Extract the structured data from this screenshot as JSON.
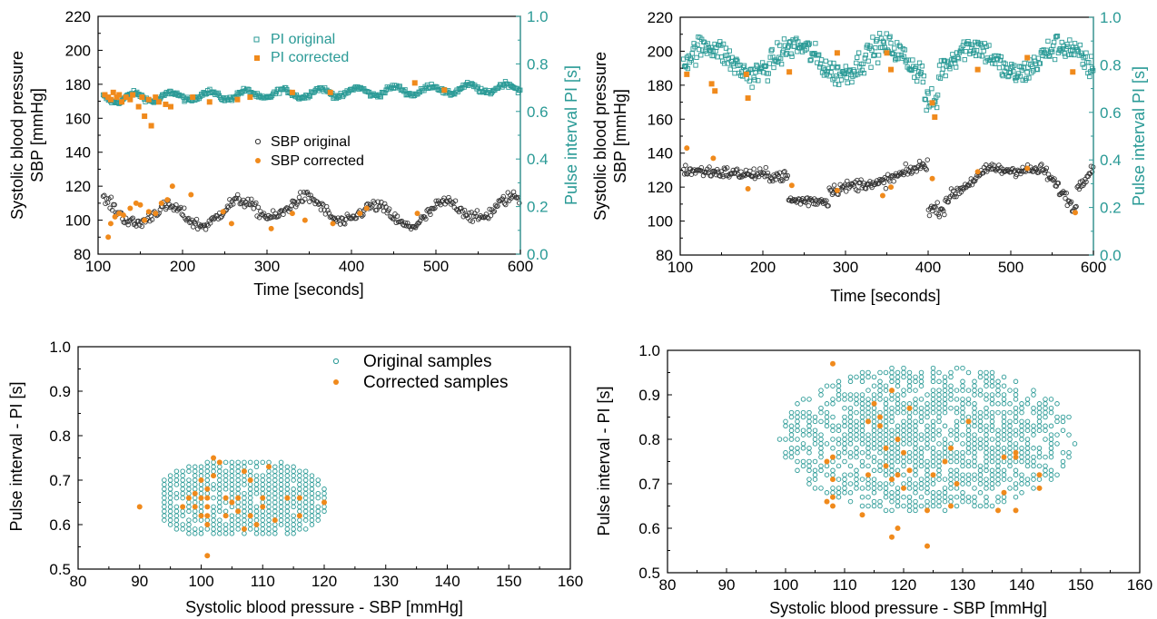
{
  "colors": {
    "pi_original": "#2a9a96",
    "corrected": "#f08a1c",
    "sbp_original": "#333333",
    "right_axis": "#2a9a96"
  },
  "chart_data": [
    {
      "id": "top-left",
      "type": "scatter",
      "title": "",
      "xlabel": "Time [seconds]",
      "ylabel": "Systolic blood pressure\nSBP [mmHg]",
      "ylabel_lines": [
        "Systolic blood pressure",
        "SBP [mmHg]"
      ],
      "y2label": "Pulse interval PI [s]",
      "xlim": [
        100,
        600
      ],
      "ylim": [
        80,
        220
      ],
      "y2lim": [
        0.0,
        1.0
      ],
      "xticks": [
        "100",
        "200",
        "300",
        "400",
        "500",
        "600"
      ],
      "yticks": [
        "80",
        "100",
        "120",
        "140",
        "160",
        "180",
        "200",
        "220"
      ],
      "y2ticks": [
        "0.0",
        "0.2",
        "0.4",
        "0.6",
        "0.8",
        "1.0"
      ],
      "legend": [
        "PI original",
        "PI corrected",
        "SBP original",
        "SBP corrected"
      ],
      "series": [
        {
          "name": "PI original",
          "axis": "right",
          "approx": "PI around 0.62-0.75 s across 105-600 s, rising slowly from ~0.65 to ~0.70"
        },
        {
          "name": "PI corrected",
          "axis": "right",
          "x": [
            108,
            112,
            115,
            118,
            122,
            125,
            128,
            133,
            138,
            141,
            148,
            152,
            155,
            160,
            163,
            168,
            172,
            180,
            186,
            212,
            232,
            265,
            280,
            330,
            375,
            475,
            510
          ],
          "y": [
            0.67,
            0.66,
            0.65,
            0.68,
            0.66,
            0.67,
            0.64,
            0.66,
            0.65,
            0.67,
            0.62,
            0.66,
            0.58,
            0.65,
            0.54,
            0.66,
            0.64,
            0.63,
            0.62,
            0.66,
            0.64,
            0.65,
            0.66,
            0.68,
            0.68,
            0.72,
            0.69
          ]
        },
        {
          "name": "SBP original",
          "axis": "left",
          "approx": "SBP around 92-120 mmHg from 105-600 s"
        },
        {
          "name": "SBP corrected",
          "axis": "left",
          "x": [
            112,
            115,
            120,
            125,
            130,
            138,
            145,
            150,
            155,
            160,
            168,
            175,
            182,
            188,
            210,
            248,
            258,
            305,
            330,
            345,
            378,
            410,
            418,
            478
          ],
          "y": [
            90,
            98,
            102,
            104,
            103,
            107,
            110,
            109,
            100,
            105,
            104,
            110,
            112,
            120,
            115,
            105,
            98,
            95,
            104,
            100,
            98,
            104,
            107,
            104
          ]
        }
      ]
    },
    {
      "id": "top-right",
      "type": "scatter",
      "title": "",
      "xlabel": "Time [seconds]",
      "ylabel_lines": [
        "Systolic blood pressure",
        "SBP [mmHg]"
      ],
      "y2label": "Pulse interval PI [s]",
      "xlim": [
        100,
        600
      ],
      "ylim": [
        80,
        220
      ],
      "y2lim": [
        0.0,
        1.0
      ],
      "xticks": [
        "100",
        "200",
        "300",
        "400",
        "500",
        "600"
      ],
      "yticks": [
        "80",
        "100",
        "120",
        "140",
        "160",
        "180",
        "200",
        "220"
      ],
      "y2ticks": [
        "0.0",
        "0.2",
        "0.4",
        "0.6",
        "0.8",
        "1.0"
      ],
      "series": [
        {
          "name": "PI original",
          "axis": "right",
          "approx": "PI scattered 0.62-0.96 s"
        },
        {
          "name": "PI corrected",
          "axis": "right",
          "x": [
            108,
            138,
            142,
            180,
            182,
            232,
            290,
            350,
            355,
            405,
            408,
            460,
            520,
            575
          ],
          "y": [
            0.76,
            0.72,
            0.69,
            0.76,
            0.66,
            0.77,
            0.85,
            0.85,
            0.78,
            0.64,
            0.58,
            0.78,
            0.83,
            0.77
          ]
        },
        {
          "name": "SBP original",
          "axis": "left",
          "approx": "SBP oscillating 100-145 mmHg"
        },
        {
          "name": "SBP corrected",
          "axis": "left",
          "x": [
            108,
            140,
            182,
            235,
            290,
            345,
            355,
            405,
            460,
            520,
            578
          ],
          "y": [
            143,
            137,
            119,
            121,
            118,
            115,
            120,
            125,
            129,
            131,
            105
          ]
        }
      ]
    },
    {
      "id": "bottom-left",
      "type": "scatter",
      "title": "",
      "xlabel": "Systolic blood pressure - SBP [mmHg]",
      "ylabel": "Pulse interval - PI [s]",
      "xlim": [
        80,
        160
      ],
      "ylim": [
        0.5,
        1.0
      ],
      "xticks": [
        "80",
        "90",
        "100",
        "110",
        "120",
        "130",
        "140",
        "150",
        "160"
      ],
      "yticks": [
        "0.5",
        "0.6",
        "0.7",
        "0.8",
        "0.9",
        "1.0"
      ],
      "legend": [
        "Original samples",
        "Corrected samples"
      ],
      "series": [
        {
          "name": "Original samples",
          "approx": "grid of points SBP 94-121 mmHg, PI 0.58-0.76 s"
        },
        {
          "name": "Corrected samples",
          "x": [
            90,
            97,
            98,
            99,
            99,
            100,
            100,
            100,
            101,
            101,
            101,
            101,
            101,
            101,
            102,
            102,
            103,
            104,
            104,
            105,
            106,
            106,
            107,
            107,
            108,
            108,
            109,
            110,
            110,
            111,
            112,
            114,
            116,
            116,
            120
          ],
          "y": [
            0.64,
            0.64,
            0.66,
            0.67,
            0.64,
            0.62,
            0.66,
            0.7,
            0.53,
            0.6,
            0.62,
            0.64,
            0.66,
            0.68,
            0.75,
            0.71,
            0.74,
            0.66,
            0.62,
            0.65,
            0.66,
            0.63,
            0.59,
            0.72,
            0.7,
            0.62,
            0.6,
            0.64,
            0.66,
            0.73,
            0.61,
            0.66,
            0.62,
            0.66,
            0.65
          ]
        }
      ]
    },
    {
      "id": "bottom-right",
      "type": "scatter",
      "title": "",
      "xlabel": "Systolic blood pressure - SBP [mmHg]",
      "ylabel": "Pulse interval - PI [s]",
      "xlim": [
        80,
        160
      ],
      "ylim": [
        0.5,
        1.0
      ],
      "xticks": [
        "80",
        "90",
        "100",
        "110",
        "120",
        "130",
        "140",
        "150",
        "160"
      ],
      "yticks": [
        "0.5",
        "0.6",
        "0.7",
        "0.8",
        "0.9",
        "1.0"
      ],
      "series": [
        {
          "name": "Original samples",
          "approx": "cloud SBP 99-156 mmHg, PI 0.62-0.99 s"
        },
        {
          "name": "Corrected samples",
          "x": [
            107,
            107,
            108,
            108,
            108,
            108,
            108,
            113,
            114,
            114,
            115,
            116,
            116,
            117,
            117,
            118,
            118,
            118,
            119,
            119,
            119,
            120,
            120,
            121,
            121,
            124,
            124,
            125,
            127,
            128,
            128,
            129,
            131,
            136,
            137,
            137,
            139,
            139,
            139,
            143,
            143
          ],
          "y": [
            0.66,
            0.75,
            0.97,
            0.76,
            0.67,
            0.71,
            0.65,
            0.63,
            0.72,
            0.84,
            0.88,
            0.83,
            0.85,
            0.78,
            0.74,
            0.58,
            0.71,
            0.91,
            0.6,
            0.8,
            0.72,
            0.77,
            0.69,
            0.73,
            0.87,
            0.64,
            0.56,
            0.72,
            0.75,
            0.65,
            0.78,
            0.7,
            0.84,
            0.64,
            0.68,
            0.76,
            0.76,
            0.64,
            0.77,
            0.72,
            0.69
          ]
        }
      ]
    }
  ]
}
